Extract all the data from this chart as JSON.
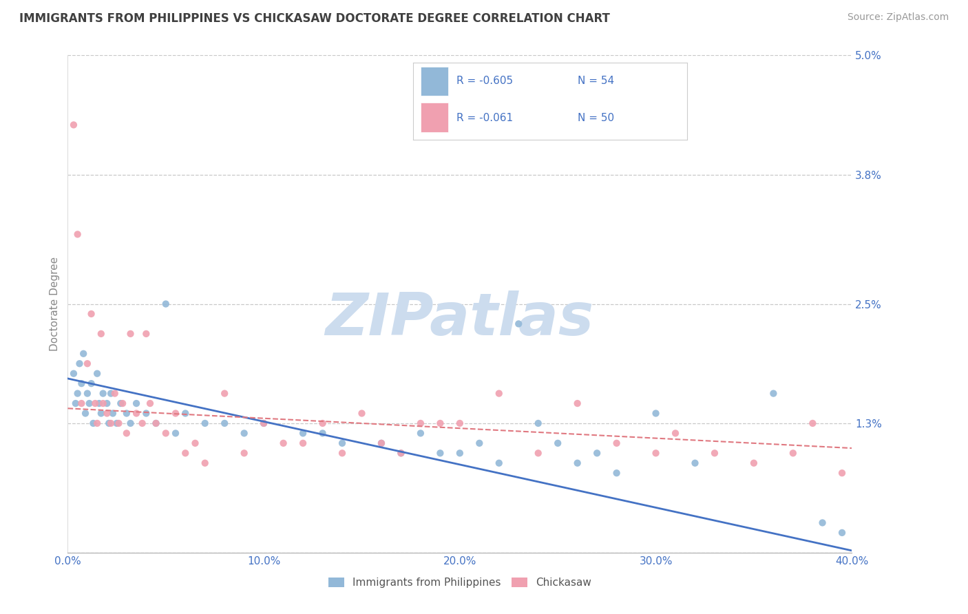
{
  "title": "IMMIGRANTS FROM PHILIPPINES VS CHICKASAW DOCTORATE DEGREE CORRELATION CHART",
  "source": "Source: ZipAtlas.com",
  "ylabel": "Doctorate Degree",
  "xlim": [
    0.0,
    40.0
  ],
  "ylim": [
    0.0,
    5.0
  ],
  "xticks": [
    0.0,
    10.0,
    20.0,
    30.0,
    40.0
  ],
  "yticks": [
    0.0,
    1.3,
    2.5,
    3.8,
    5.0
  ],
  "ytick_labels": [
    "",
    "1.3%",
    "2.5%",
    "3.8%",
    "5.0%"
  ],
  "xtick_labels": [
    "0.0%",
    "10.0%",
    "20.0%",
    "30.0%",
    "40.0%"
  ],
  "grid_color": "#c8c8c8",
  "background_color": "#ffffff",
  "watermark": "ZIPatlas",
  "watermark_color": "#ccdcee",
  "blue_color": "#92b8d8",
  "pink_color": "#f0a0b0",
  "blue_line_color": "#4472c4",
  "pink_line_color": "#e07880",
  "legend_R1": "-0.605",
  "legend_N1": "54",
  "legend_R2": "-0.061",
  "legend_N2": "50",
  "legend_label1": "Immigrants from Philippines",
  "legend_label2": "Chickasaw",
  "title_color": "#404040",
  "tick_label_color": "#4472c4",
  "blue_scatter_x": [
    0.3,
    0.4,
    0.5,
    0.6,
    0.7,
    0.8,
    0.9,
    1.0,
    1.1,
    1.2,
    1.3,
    1.5,
    1.6,
    1.7,
    1.8,
    2.0,
    2.1,
    2.2,
    2.3,
    2.5,
    2.7,
    3.0,
    3.2,
    3.5,
    4.0,
    4.5,
    5.0,
    5.5,
    6.0,
    7.0,
    8.0,
    9.0,
    10.0,
    12.0,
    13.0,
    14.0,
    16.0,
    17.0,
    18.0,
    19.0,
    20.0,
    21.0,
    22.0,
    23.0,
    24.0,
    25.0,
    26.0,
    27.0,
    28.0,
    30.0,
    32.0,
    36.0,
    38.5,
    39.5
  ],
  "blue_scatter_y": [
    1.8,
    1.5,
    1.6,
    1.9,
    1.7,
    2.0,
    1.4,
    1.6,
    1.5,
    1.7,
    1.3,
    1.8,
    1.5,
    1.4,
    1.6,
    1.5,
    1.3,
    1.6,
    1.4,
    1.3,
    1.5,
    1.4,
    1.3,
    1.5,
    1.4,
    1.3,
    2.5,
    1.2,
    1.4,
    1.3,
    1.3,
    1.2,
    1.3,
    1.2,
    1.2,
    1.1,
    1.1,
    1.0,
    1.2,
    1.0,
    1.0,
    1.1,
    0.9,
    2.3,
    1.3,
    1.1,
    0.9,
    1.0,
    0.8,
    1.4,
    0.9,
    1.6,
    0.3,
    0.2
  ],
  "pink_scatter_x": [
    0.3,
    0.5,
    0.7,
    1.0,
    1.2,
    1.4,
    1.5,
    1.7,
    1.8,
    2.0,
    2.2,
    2.4,
    2.6,
    2.8,
    3.0,
    3.2,
    3.5,
    3.8,
    4.0,
    4.2,
    4.5,
    5.0,
    5.5,
    6.0,
    6.5,
    7.0,
    8.0,
    9.0,
    10.0,
    11.0,
    12.0,
    13.0,
    14.0,
    15.0,
    16.0,
    17.0,
    18.0,
    19.0,
    20.0,
    22.0,
    24.0,
    26.0,
    28.0,
    30.0,
    31.0,
    33.0,
    35.0,
    37.0,
    38.0,
    39.5
  ],
  "pink_scatter_y": [
    4.3,
    3.2,
    1.5,
    1.9,
    2.4,
    1.5,
    1.3,
    2.2,
    1.5,
    1.4,
    1.3,
    1.6,
    1.3,
    1.5,
    1.2,
    2.2,
    1.4,
    1.3,
    2.2,
    1.5,
    1.3,
    1.2,
    1.4,
    1.0,
    1.1,
    0.9,
    1.6,
    1.0,
    1.3,
    1.1,
    1.1,
    1.3,
    1.0,
    1.4,
    1.1,
    1.0,
    1.3,
    1.3,
    1.3,
    1.6,
    1.0,
    1.5,
    1.1,
    1.0,
    1.2,
    1.0,
    0.9,
    1.0,
    1.3,
    0.8
  ],
  "blue_trend_x": [
    0.0,
    40.0
  ],
  "blue_trend_y": [
    1.75,
    0.02
  ],
  "pink_trend_x": [
    0.0,
    40.0
  ],
  "pink_trend_y": [
    1.45,
    1.05
  ]
}
